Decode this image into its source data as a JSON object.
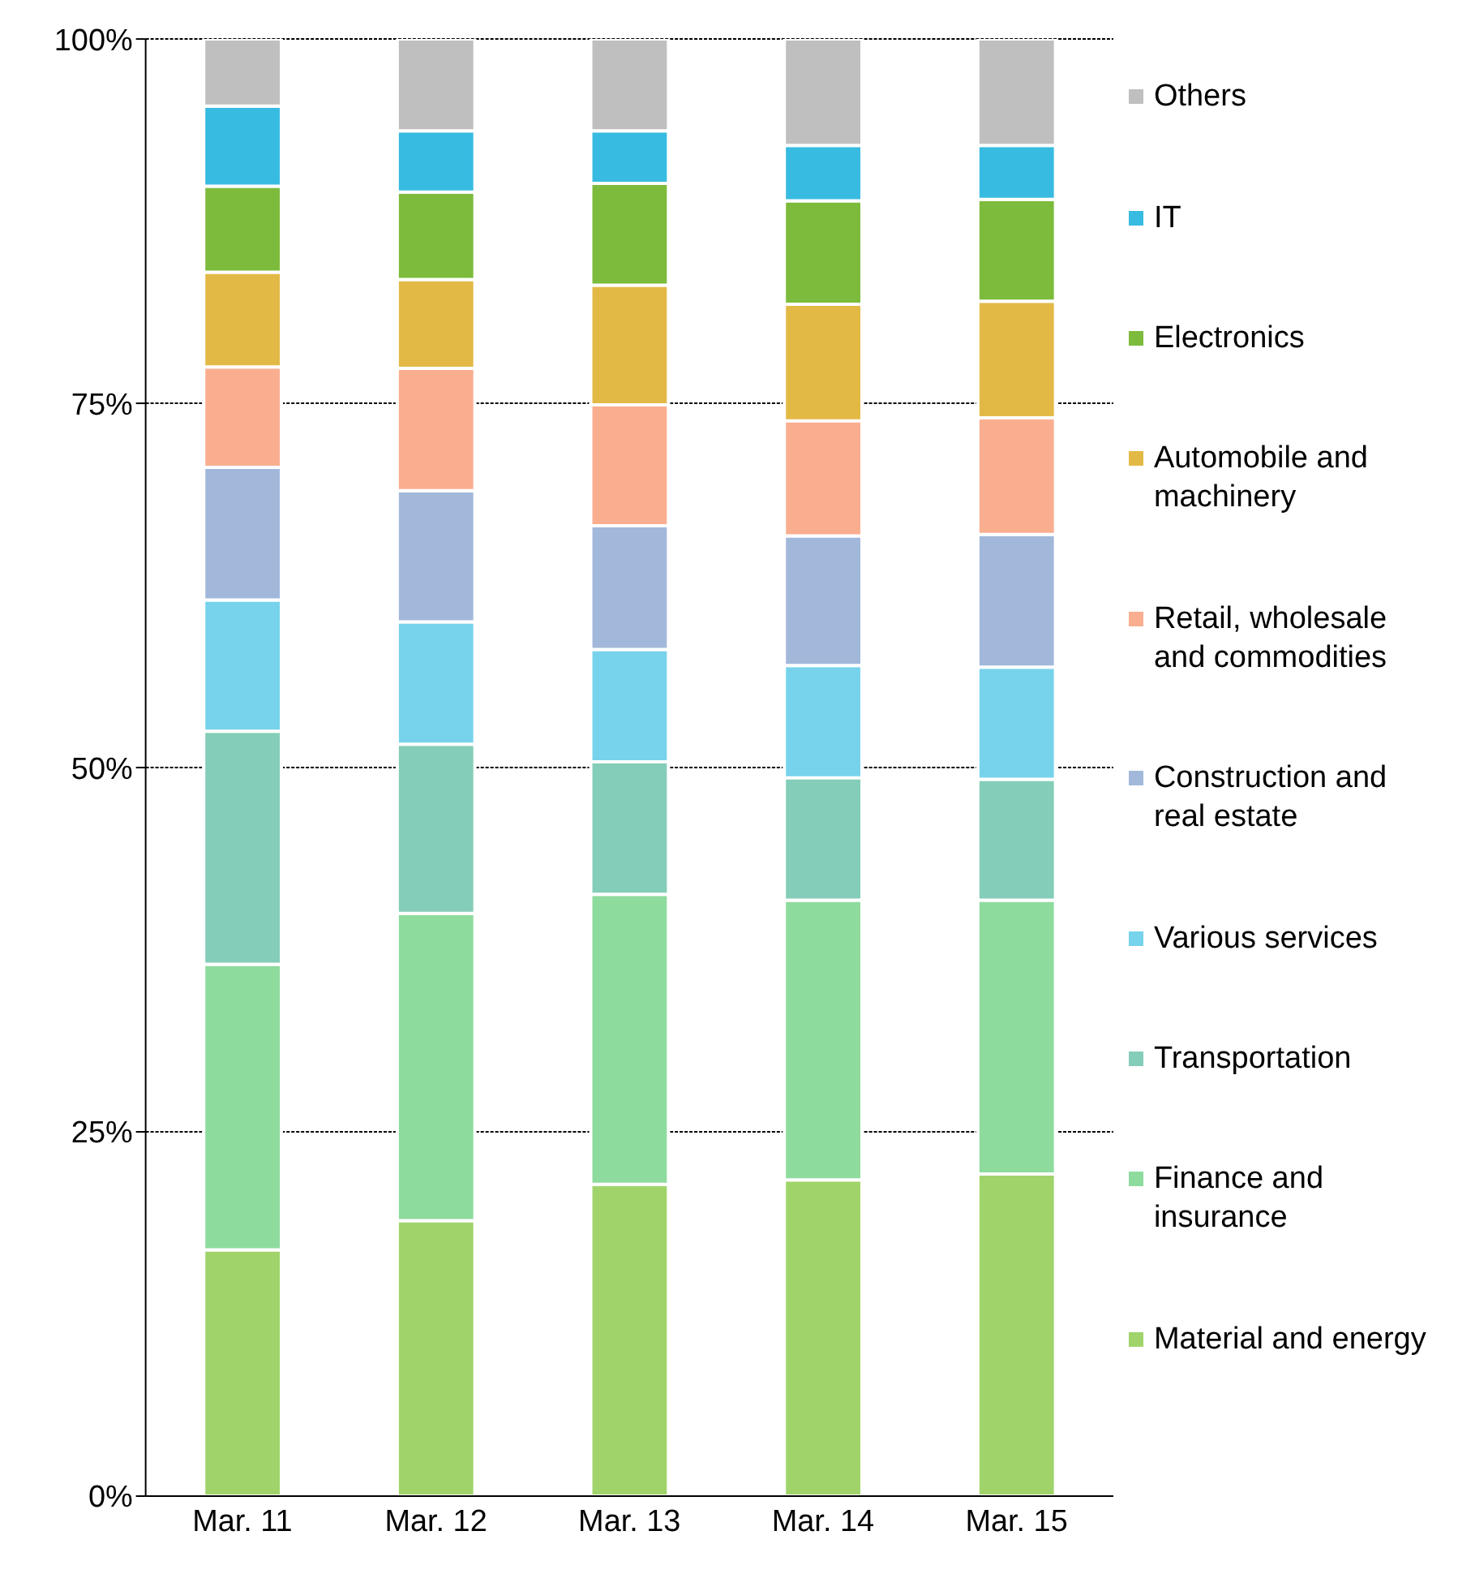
{
  "chart_data": {
    "type": "bar",
    "stacked": true,
    "categories": [
      "Mar. 11",
      "Mar. 12",
      "Mar. 13",
      "Mar. 14",
      "Mar. 15"
    ],
    "series": [
      {
        "name": "Material and energy",
        "color": "#a0d46a",
        "values": [
          16.9,
          18.9,
          21.4,
          21.7,
          22.1
        ]
      },
      {
        "name": "Finance and insurance",
        "color": "#8edb9e",
        "values": [
          19.6,
          21.1,
          19.9,
          19.2,
          18.8
        ]
      },
      {
        "name": "Transportation",
        "color": "#84cdb8",
        "values": [
          16.0,
          11.6,
          9.1,
          8.4,
          8.3
        ]
      },
      {
        "name": "Various services",
        "color": "#77d3ec",
        "values": [
          9.0,
          8.4,
          7.7,
          7.7,
          7.7
        ]
      },
      {
        "name": "Construction and real estate",
        "color": "#a2b8db",
        "values": [
          9.1,
          9.0,
          8.5,
          8.9,
          9.1
        ]
      },
      {
        "name": "Retail, wholesale and commodities",
        "color": "#faae90",
        "values": [
          6.9,
          8.4,
          8.3,
          7.9,
          8.0
        ]
      },
      {
        "name": "Automobile and machinery",
        "color": "#e3b946",
        "values": [
          6.5,
          6.1,
          8.2,
          8.0,
          8.0
        ]
      },
      {
        "name": "Electronics",
        "color": "#7dbb3c",
        "values": [
          5.9,
          6.0,
          7.0,
          7.1,
          7.0
        ]
      },
      {
        "name": "IT",
        "color": "#38bbe1",
        "values": [
          5.5,
          4.2,
          3.6,
          3.8,
          3.7
        ]
      },
      {
        "name": "Others",
        "color": "#bfbfbf",
        "values": [
          4.6,
          6.3,
          6.3,
          7.3,
          7.3
        ]
      }
    ],
    "ylim": [
      0,
      100
    ],
    "yticks": [
      {
        "value": 0,
        "label": "0%"
      },
      {
        "value": 25,
        "label": "25%"
      },
      {
        "value": 50,
        "label": "50%"
      },
      {
        "value": 75,
        "label": "75%"
      },
      {
        "value": 100,
        "label": "100%"
      }
    ],
    "grid": "y",
    "legend": "right"
  }
}
